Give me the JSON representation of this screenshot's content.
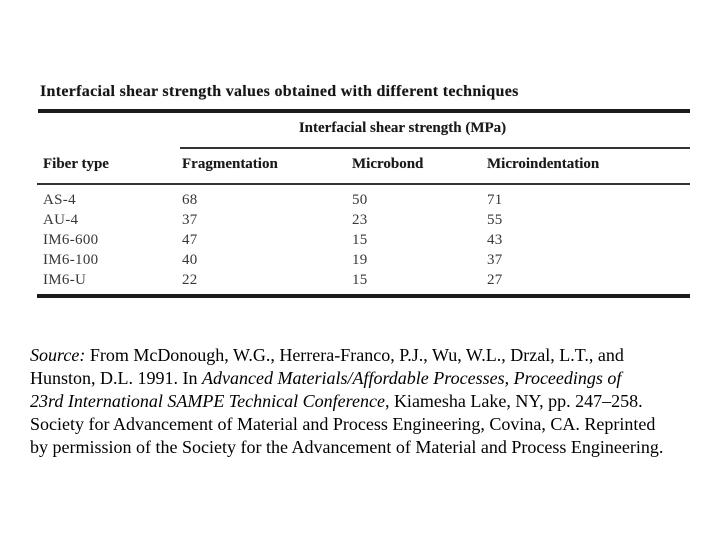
{
  "table": {
    "title": "Interfacial shear strength values obtained with different techniques",
    "span_header": "Interfacial shear strength (MPa)",
    "columns": {
      "fiber_type": "Fiber type",
      "fragmentation": "Fragmentation",
      "microbond": "Microbond",
      "microindentation": "Microindentation"
    },
    "rows": [
      {
        "fiber_type": "AS-4",
        "fragmentation": "68",
        "microbond": "50",
        "microindentation": "71"
      },
      {
        "fiber_type": "AU-4",
        "fragmentation": "37",
        "microbond": "23",
        "microindentation": "55"
      },
      {
        "fiber_type": "IM6-600",
        "fragmentation": "47",
        "microbond": "15",
        "microindentation": "43"
      },
      {
        "fiber_type": "IM6-100",
        "fragmentation": "40",
        "microbond": "19",
        "microindentation": "37"
      },
      {
        "fiber_type": "IM6-U",
        "fragmentation": "22",
        "microbond": "15",
        "microindentation": "27"
      }
    ],
    "ink_color": "#1f1f1f",
    "background_color": "#ffffff"
  },
  "citation": {
    "line1_italic": "Source:",
    "line1_rest": " From McDonough, W.G., Herrera-Franco, P.J., Wu, W.L., Drzal, L.T., and",
    "line2_pre": "Hunston, D.L. 1991. In ",
    "line2_italic_a": "Advanced Materials/Affordable Processes",
    "line2_sep": ", ",
    "line2_italic_b": "Proceedings of",
    "line3_italic": "23rd International SAMPE Technical Conference",
    "line3_rest": ", Kiamesha Lake, NY, pp. 247–258.",
    "line4": "Society for Advancement of Material and Process Engineering, Covina, CA. Reprinted",
    "line5": "by permission of the Society for the Advancement of Material and Process Engineering."
  }
}
